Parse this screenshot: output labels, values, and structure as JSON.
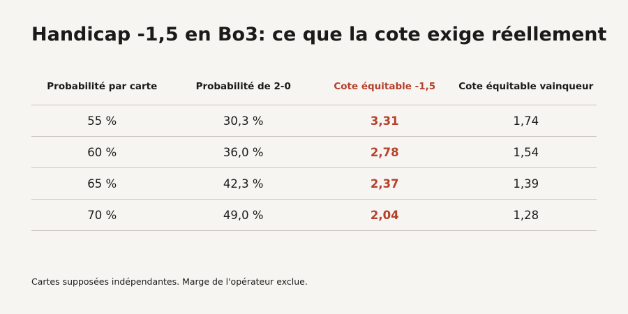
{
  "title": "Handicap -1,5 en Bo3: ce que la cote exige réellement",
  "table": {
    "headers": [
      "Probabilité par carte",
      "Probabilité de 2-0",
      "Cote équitable -1,5",
      "Cote équitable vainqueur"
    ],
    "rows": [
      [
        "55 %",
        "30,3 %",
        "3,31",
        "1,74"
      ],
      [
        "60 %",
        "36,0 %",
        "2,78",
        "1,54"
      ],
      [
        "65 %",
        "42,3 %",
        "2,37",
        "1,39"
      ],
      [
        "70 %",
        "49,0 %",
        "2,04",
        "1,28"
      ]
    ]
  },
  "footnote": "Cartes supposées indépendantes. Marge de l'opérateur exclue.",
  "colors": {
    "background": "#f7f5f1",
    "accent": "#b5412b",
    "text": "#1a1a1a",
    "rule": "#c8c5c0"
  }
}
